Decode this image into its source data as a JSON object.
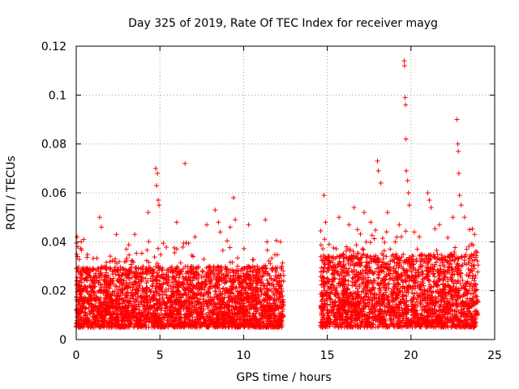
{
  "chart_data": {
    "type": "scatter",
    "title": "Day 325 of 2019, Rate Of TEC Index for receiver mayg",
    "xlabel": "GPS time / hours",
    "ylabel": "ROTI / TECUs",
    "xlim": [
      0,
      25
    ],
    "ylim": [
      0,
      0.12
    ],
    "xticks": [
      0,
      5,
      10,
      15,
      20,
      25
    ],
    "xtick_labels": [
      "0",
      "5",
      "10",
      "15",
      "20",
      "25"
    ],
    "yticks": [
      0,
      0.02,
      0.04,
      0.06,
      0.08,
      0.1,
      0.12
    ],
    "ytick_labels": [
      "0",
      "0.02",
      "0.04",
      "0.06",
      "0.08",
      "0.1",
      "0.12"
    ],
    "grid": true,
    "marker": "+",
    "color": "#ff0000",
    "series": [
      {
        "name": "ROTI",
        "segments": [
          {
            "x_range": [
              0.0,
              12.4
            ],
            "typical_range": [
              0.005,
              0.03
            ]
          },
          {
            "x_range": [
              14.6,
              24.0
            ],
            "typical_range": [
              0.005,
              0.035
            ]
          }
        ],
        "x": [
          0.05,
          0.1,
          0.3,
          0.45,
          1.4,
          1.5,
          2.4,
          3.0,
          3.5,
          4.3,
          4.75,
          4.85,
          4.8,
          4.9,
          4.95,
          6.5,
          6.0,
          7.1,
          7.8,
          8.3,
          8.5,
          8.6,
          9.2,
          9.4,
          9.5,
          10.3,
          11.3,
          12.2,
          14.8,
          14.9,
          15.7,
          16.3,
          16.6,
          16.8,
          17.2,
          17.6,
          18.0,
          18.05,
          18.2,
          18.6,
          19.3,
          19.6,
          19.62,
          19.65,
          19.68,
          19.7,
          19.72,
          19.8,
          19.85,
          19.9,
          20.2,
          20.5,
          21.0,
          21.1,
          21.2,
          21.7,
          22.5,
          22.75,
          22.8,
          22.83,
          22.86,
          22.9,
          23.0,
          23.2,
          23.5,
          23.8
        ],
        "y": [
          0.042,
          0.038,
          0.04,
          0.041,
          0.05,
          0.046,
          0.043,
          0.037,
          0.043,
          0.052,
          0.07,
          0.068,
          0.063,
          0.057,
          0.055,
          0.072,
          0.048,
          0.042,
          0.047,
          0.053,
          0.048,
          0.044,
          0.046,
          0.058,
          0.049,
          0.047,
          0.049,
          0.04,
          0.059,
          0.048,
          0.05,
          0.047,
          0.054,
          0.045,
          0.052,
          0.048,
          0.073,
          0.069,
          0.064,
          0.052,
          0.047,
          0.114,
          0.112,
          0.099,
          0.096,
          0.082,
          0.069,
          0.065,
          0.06,
          0.055,
          0.044,
          0.042,
          0.06,
          0.057,
          0.054,
          0.047,
          0.05,
          0.09,
          0.08,
          0.077,
          0.068,
          0.059,
          0.055,
          0.05,
          0.045,
          0.043
        ]
      }
    ]
  }
}
